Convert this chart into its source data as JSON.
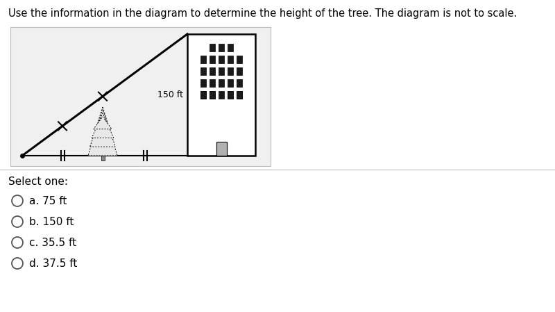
{
  "title": "Use the information in the diagram to determine the height of the tree. The diagram is not to scale.",
  "title_fontsize": 10.5,
  "label_150ft": "150 ft",
  "options": [
    "a. 75 ft",
    "b. 150 ft",
    "c. 35.5 ft",
    "d. 37.5 ft"
  ],
  "select_one_text": "Select one:",
  "bg_color": "#ffffff",
  "diagram_bg": "#f0f0f0",
  "win_color": "#1a1a1a",
  "door_color": "#b0b0b0"
}
